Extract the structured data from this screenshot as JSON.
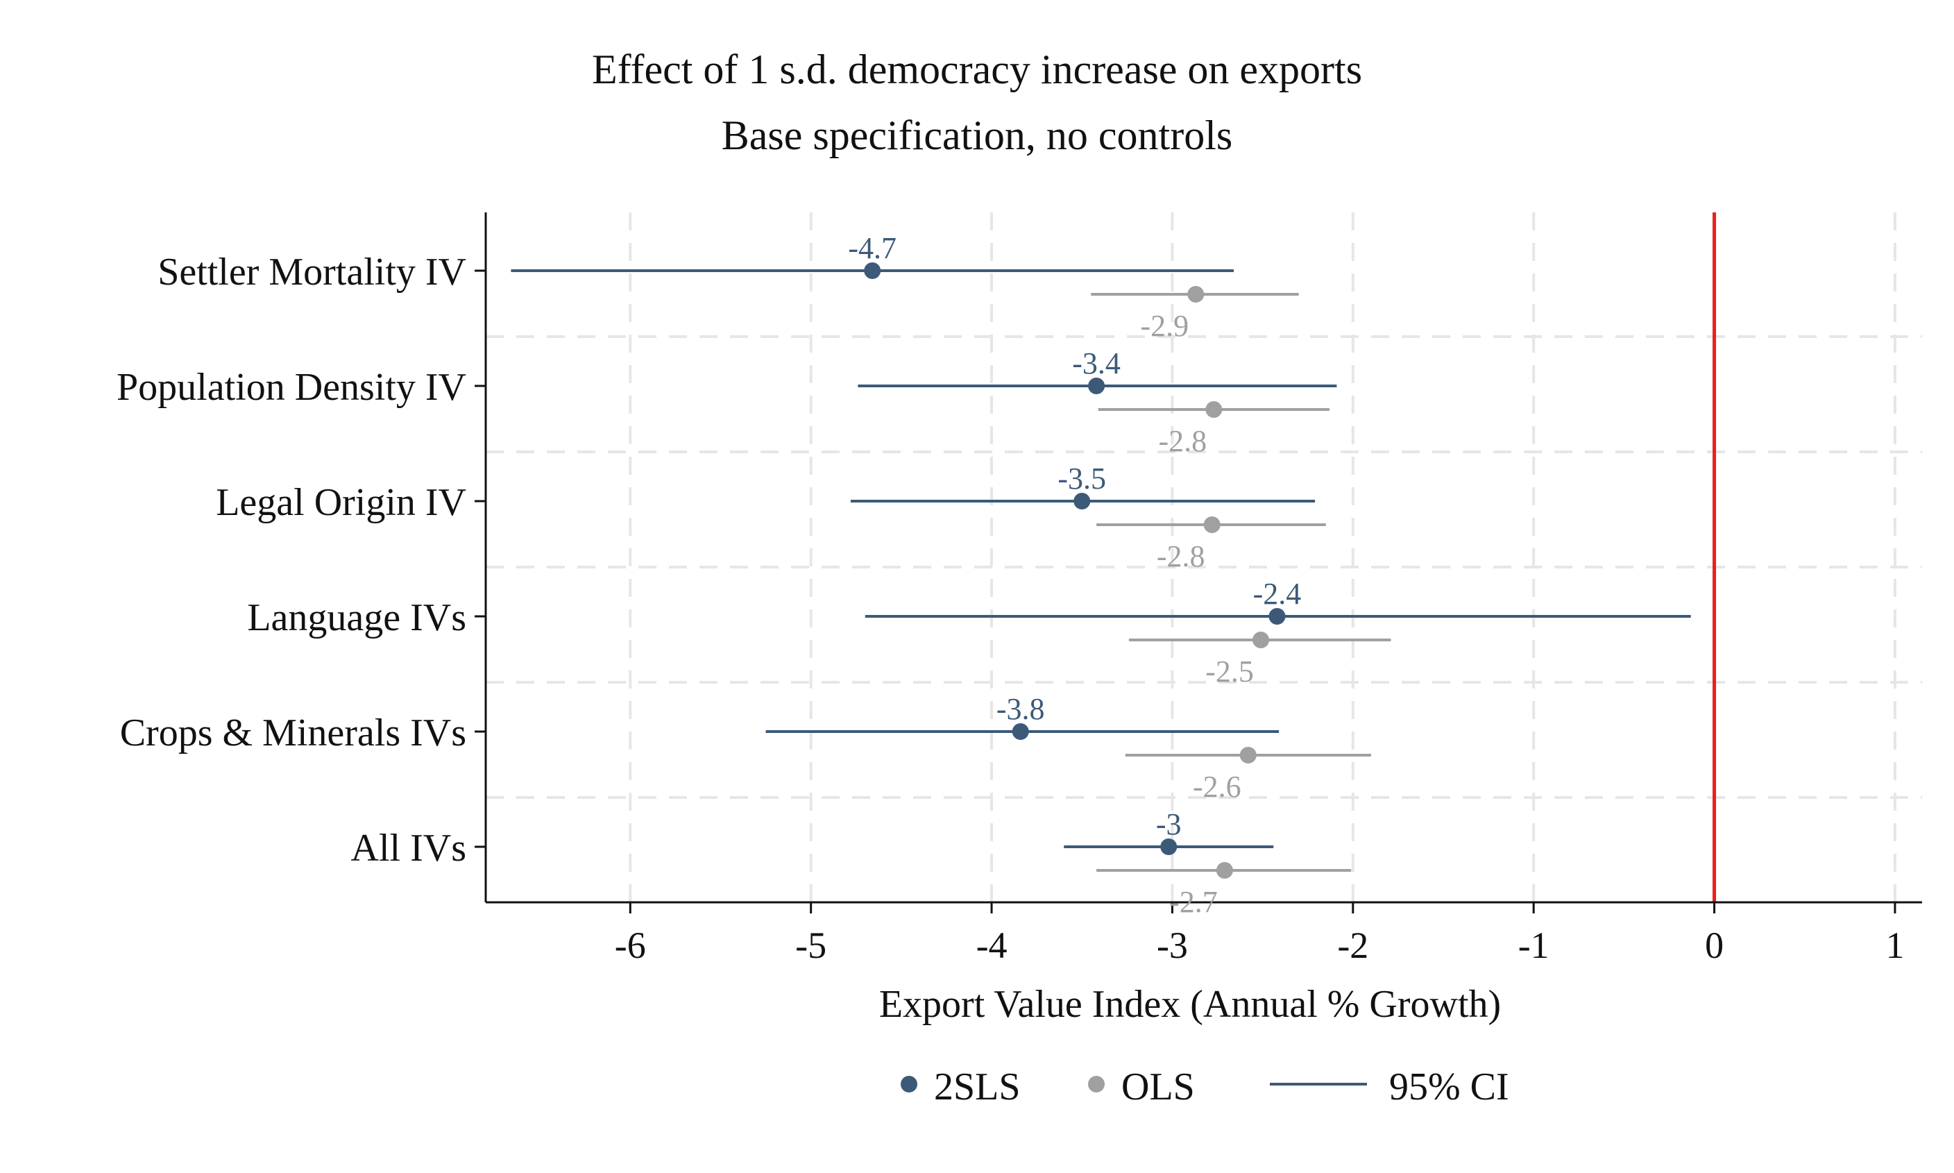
{
  "chart_data": {
    "type": "scatter",
    "subtype": "coefficient-plot",
    "title": "Effect of 1 s.d. democracy increase on exports",
    "subtitle": "Base specification, no controls",
    "xlabel": "Export Value Index (Annual % Growth)",
    "ylabel": "",
    "xlim": [
      -6.8,
      1.15
    ],
    "xticks": [
      -6,
      -5,
      -4,
      -3,
      -2,
      -1,
      0,
      1
    ],
    "grid": true,
    "reference_line": {
      "x": 0,
      "color": "#e8201e"
    },
    "legend_position": "bottom",
    "legend": [
      {
        "label": "2SLS",
        "kind": "marker",
        "color": "#3c5a78"
      },
      {
        "label": "OLS",
        "kind": "marker",
        "color": "#a0a0a0"
      },
      {
        "label": "95% CI",
        "kind": "line",
        "color": "#3c5a78"
      }
    ],
    "categories": [
      "Settler Mortality IV",
      "Population Density IV",
      "Legal Origin IV",
      "Language IVs",
      "Crops & Minerals IVs",
      "All IVs"
    ],
    "series": [
      {
        "name": "2SLS",
        "color": "#3c5a78",
        "values": [
          -4.66,
          -3.42,
          -3.5,
          -2.42,
          -3.84,
          -3.02
        ],
        "labels": [
          "-4.7",
          "-3.4",
          "-3.5",
          "-2.4",
          "-3.8",
          "-3"
        ],
        "ci_low": [
          -6.66,
          -4.74,
          -4.78,
          -4.7,
          -5.25,
          -3.6
        ],
        "ci_high": [
          -2.66,
          -2.09,
          -2.21,
          -0.13,
          -2.41,
          -2.44
        ]
      },
      {
        "name": "OLS",
        "color": "#a0a0a0",
        "values": [
          -2.87,
          -2.77,
          -2.78,
          -2.51,
          -2.58,
          -2.71
        ],
        "labels": [
          "-2.9",
          "-2.8",
          "-2.8",
          "-2.5",
          "-2.6",
          "-2.7"
        ],
        "ci_low": [
          -3.45,
          -3.41,
          -3.42,
          -3.24,
          -3.26,
          -3.42
        ],
        "ci_high": [
          -2.3,
          -2.13,
          -2.15,
          -1.79,
          -1.9,
          -2.01
        ]
      }
    ]
  }
}
